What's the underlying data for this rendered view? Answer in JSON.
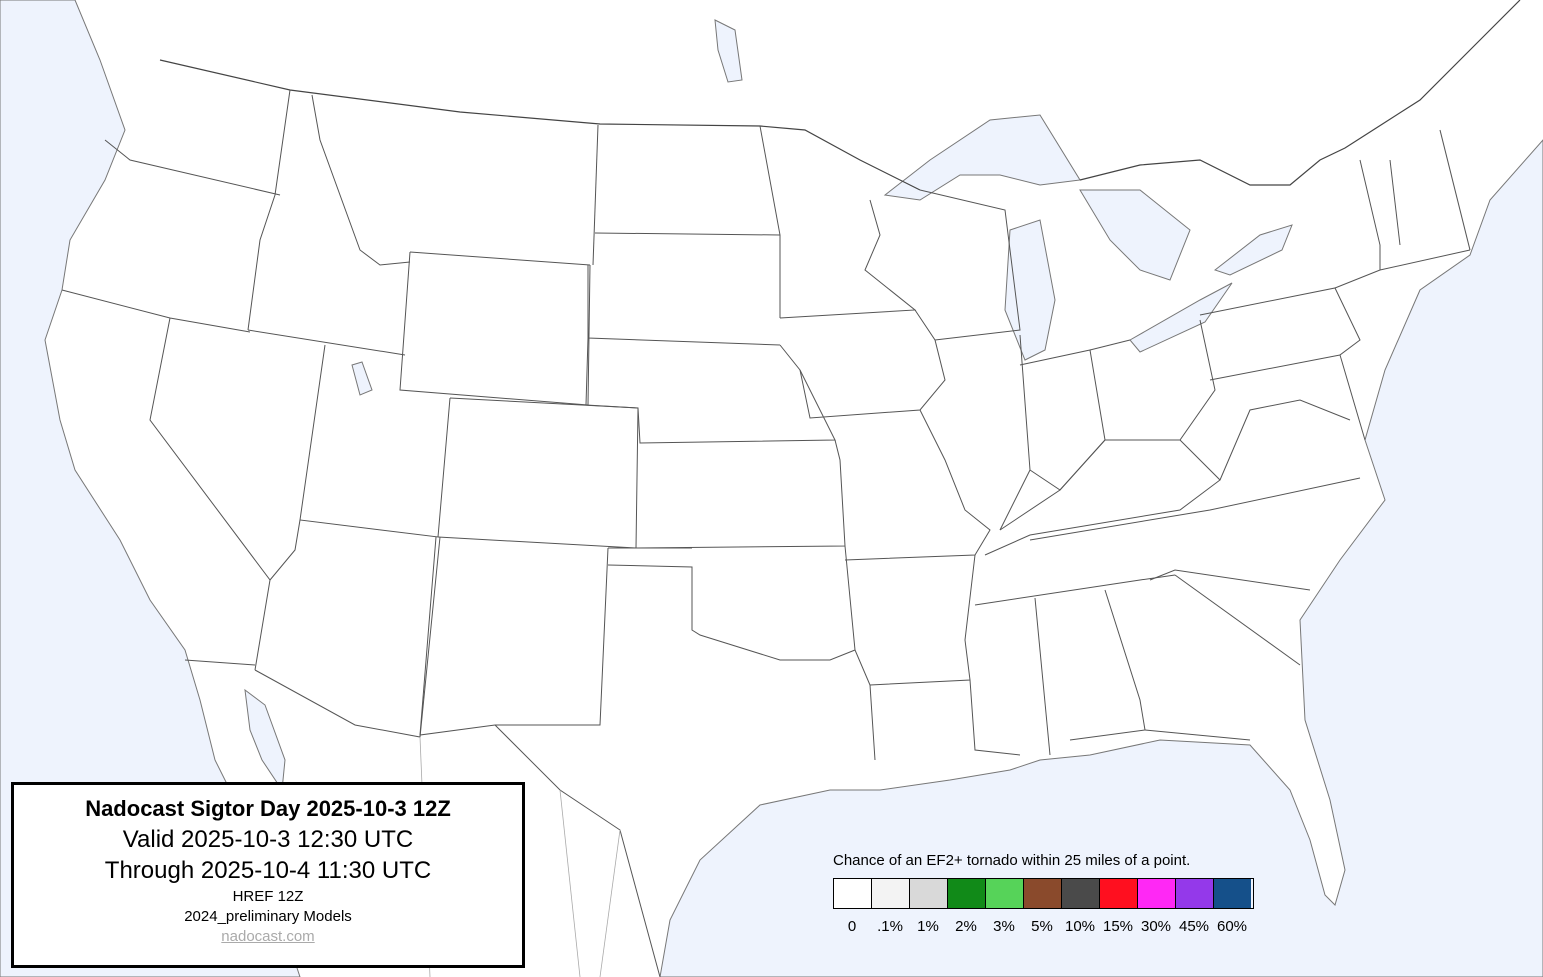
{
  "title_box": {
    "title": "Nadocast Sigtor Day 2025-10-3 12Z",
    "valid": "Valid 2025-10-3 12:30 UTC",
    "through": "Through 2025-10-4 11:30 UTC",
    "model_run": "HREF 12Z",
    "models": "2024_preliminary Models",
    "link": "nadocast.com"
  },
  "legend": {
    "title": "Chance of an EF2+ tornado within 25 miles of a point.",
    "items": [
      {
        "label": "0",
        "color": "#ffffff"
      },
      {
        "label": ".1%",
        "color": "#f3f3f3"
      },
      {
        "label": "1%",
        "color": "#d9d9d9"
      },
      {
        "label": "2%",
        "color": "#118a18"
      },
      {
        "label": "3%",
        "color": "#56d359"
      },
      {
        "label": "5%",
        "color": "#8a4a2c"
      },
      {
        "label": "10%",
        "color": "#4a4a4a"
      },
      {
        "label": "15%",
        "color": "#ff0f1f"
      },
      {
        "label": "30%",
        "color": "#ff28f5"
      },
      {
        "label": "45%",
        "color": "#9439ea"
      },
      {
        "label": "60%",
        "color": "#15508a"
      }
    ]
  },
  "map": {
    "region": "CONUS",
    "water_color": "#eef3fd",
    "land_color": "#ffffff",
    "forecast_shading": "none"
  }
}
